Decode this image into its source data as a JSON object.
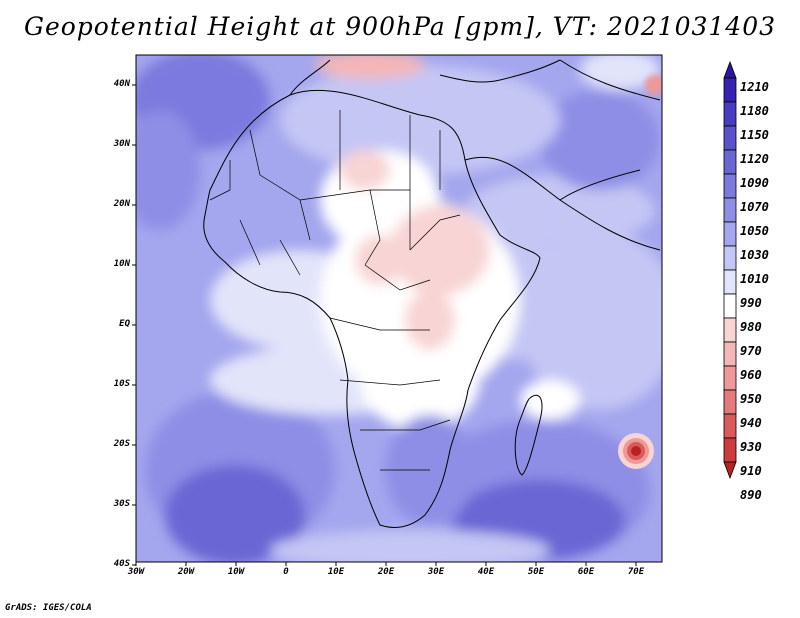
{
  "title": "Geopotential Height at 900hPa [gpm], VT: 2021031403",
  "credit": "GrADS: IGES/COLA",
  "lat_labels": [
    "40N",
    "30N",
    "20N",
    "10N",
    "EQ",
    "10S",
    "20S",
    "30S",
    "40S"
  ],
  "lon_labels": [
    "30W",
    "20W",
    "10W",
    "0",
    "10E",
    "20E",
    "30E",
    "40E",
    "50E",
    "60E",
    "70E"
  ],
  "colorbar": {
    "labels": [
      "1210",
      "1180",
      "1150",
      "1120",
      "1090",
      "1070",
      "1050",
      "1030",
      "1010",
      "990",
      "980",
      "970",
      "960",
      "950",
      "940",
      "930",
      "910",
      "890"
    ],
    "colors": [
      "#2a16a0",
      "#3622b0",
      "#4a3cc0",
      "#5a52cc",
      "#6a66d4",
      "#7c7ade",
      "#8e8ee6",
      "#a4a6ee",
      "#c4c6f4",
      "#e2e4fa",
      "#ffffff",
      "#f8d4d4",
      "#f4b6b6",
      "#ee9898",
      "#e47a7a",
      "#da5a5a",
      "#cc3c3c",
      "#b82222"
    ]
  },
  "colors": {
    "background": "#ffffff",
    "border": "#000000"
  }
}
